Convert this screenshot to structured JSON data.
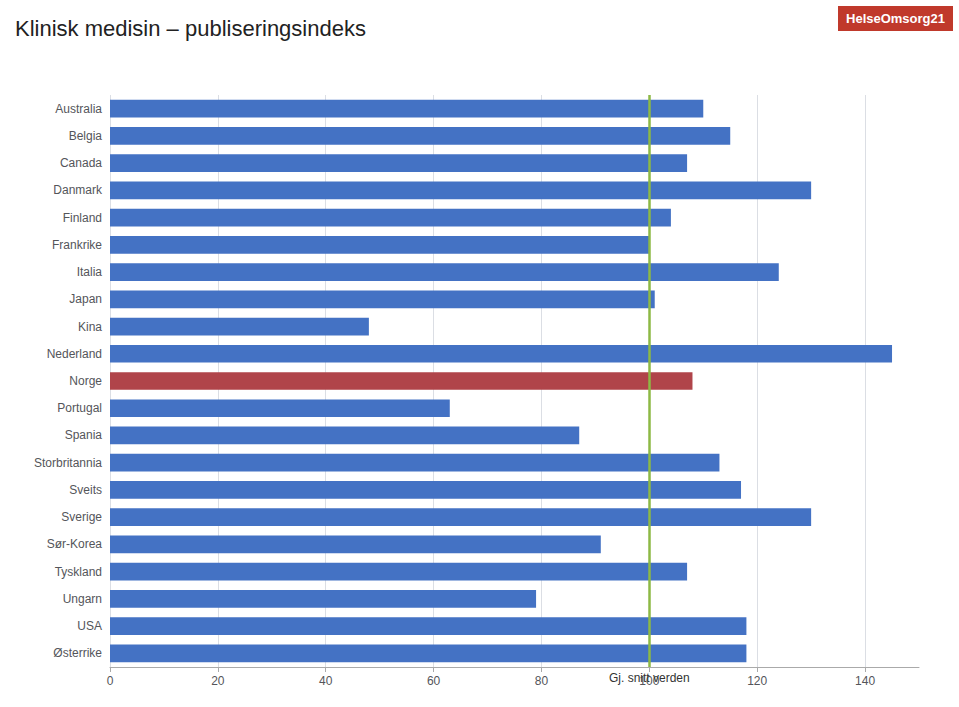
{
  "chart_data": {
    "type": "bar",
    "orientation": "horizontal",
    "title": "Klinisk medisin – publiseringsindeks",
    "categories": [
      "Australia",
      "Belgia",
      "Canada",
      "Danmark",
      "Finland",
      "Frankrike",
      "Italia",
      "Japan",
      "Kina",
      "Nederland",
      "Norge",
      "Portugal",
      "Spania",
      "Storbritannia",
      "Sveits",
      "Sverige",
      "Sør-Korea",
      "Tyskland",
      "Ungarn",
      "USA",
      "Østerrike"
    ],
    "values": [
      110,
      115,
      107,
      130,
      104,
      100,
      124,
      101,
      48,
      145,
      108,
      63,
      87,
      113,
      117,
      130,
      91,
      107,
      79,
      118,
      118
    ],
    "colors": [
      "#4472c4",
      "#4472c4",
      "#4472c4",
      "#4472c4",
      "#4472c4",
      "#4472c4",
      "#4472c4",
      "#4472c4",
      "#4472c4",
      "#4472c4",
      "#b0444a",
      "#4472c4",
      "#4472c4",
      "#4472c4",
      "#4472c4",
      "#4472c4",
      "#4472c4",
      "#4472c4",
      "#4472c4",
      "#4472c4",
      "#4472c4"
    ],
    "xlim": [
      0,
      150
    ],
    "xticks": [
      0,
      20,
      40,
      60,
      80,
      100,
      120,
      140
    ],
    "grid": true,
    "annotations": [
      {
        "text": "Gj. snitt verden",
        "x": 100,
        "color": "#8db945"
      },
      {
        "text": "HelseOmsorg21",
        "color": "#c0392b"
      }
    ]
  }
}
